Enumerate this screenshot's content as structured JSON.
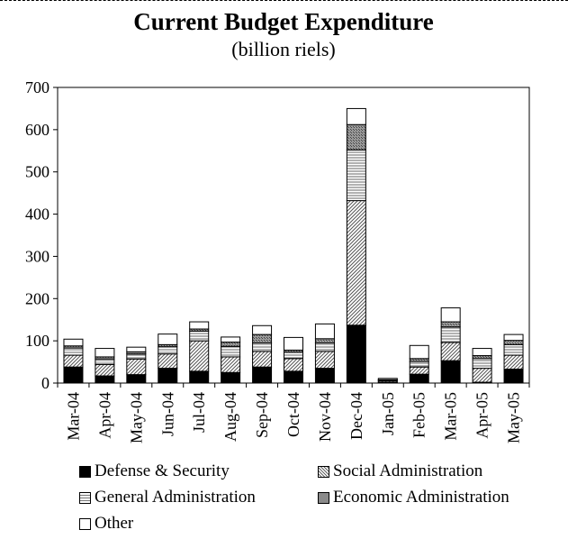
{
  "chart_data": {
    "type": "bar",
    "stacked": true,
    "title": "Current Budget Expenditure",
    "subtitle": "(billion riels)",
    "xlabel": "",
    "ylabel": "",
    "ylim": [
      0,
      700
    ],
    "yticks": [
      0,
      100,
      200,
      300,
      400,
      500,
      600,
      700
    ],
    "grid": false,
    "legend_position": "bottom",
    "categories": [
      "Mar-04",
      "Apr-04",
      "May-04",
      "Jun-04",
      "Jul-04",
      "Aug-04",
      "Sep-04",
      "Oct-04",
      "Nov-04",
      "Dec-04",
      "Jan-05",
      "Feb-05",
      "Mar-05",
      "Apr-05",
      "May-05"
    ],
    "series": [
      {
        "name": "Defense & Security",
        "pattern": "solid-black",
        "values": [
          38,
          17,
          20,
          35,
          28,
          25,
          38,
          28,
          35,
          137,
          2,
          21,
          53,
          2,
          33
        ]
      },
      {
        "name": "Social Administration",
        "pattern": "diagonal",
        "values": [
          28,
          27,
          37,
          34,
          72,
          37,
          37,
          30,
          40,
          295,
          3,
          17,
          43,
          33,
          33
        ]
      },
      {
        "name": "General Administration",
        "pattern": "horizontal",
        "values": [
          17,
          13,
          12,
          17,
          23,
          25,
          20,
          15,
          20,
          120,
          2,
          13,
          37,
          23,
          25
        ]
      },
      {
        "name": "Economic Administration",
        "pattern": "crosshatch",
        "values": [
          5,
          5,
          5,
          5,
          5,
          10,
          20,
          5,
          10,
          60,
          1,
          7,
          12,
          7,
          10
        ]
      },
      {
        "name": "Other",
        "pattern": "white",
        "values": [
          16,
          20,
          11,
          25,
          17,
          12,
          21,
          30,
          35,
          38,
          3,
          31,
          33,
          17,
          14
        ]
      }
    ]
  }
}
